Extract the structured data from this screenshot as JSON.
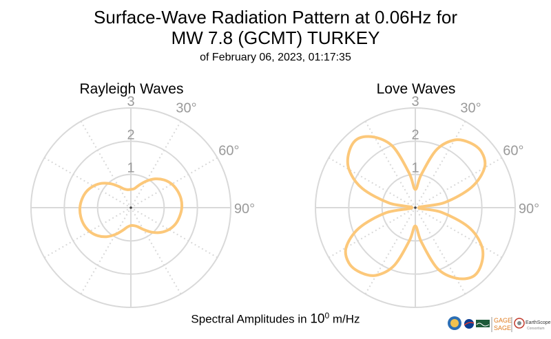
{
  "header": {
    "title_line1": "Surface-Wave Radiation Pattern at 0.06Hz for",
    "title_line2": "MW 7.8 (GCMT) TURKEY",
    "title_line3": "of February 06, 2023, 01:17:35"
  },
  "footer": {
    "label_pre": "Spectral Amplitudes in ",
    "label_base": "10",
    "label_exp": "0",
    "label_post": " m/Hz"
  },
  "logos": {
    "gage": "GAGE",
    "sage": "SAGE",
    "earthscope": "EarthScope",
    "consortium": "Consortium"
  },
  "colors": {
    "pattern": "#fcc87a",
    "grid": "#d9d9d9",
    "tick_text": "#9a9a9a"
  },
  "chart_data": [
    {
      "type": "polar",
      "title": "Rayleigh Waves",
      "radial_ticks": [
        "1",
        "2",
        "3"
      ],
      "radial_range": [
        0,
        3
      ],
      "angle_ticks": [
        "30°",
        "60°",
        "90°"
      ],
      "angular_grid_step_deg": 30,
      "azimuth_deg": [
        0,
        10,
        20,
        30,
        40,
        50,
        60,
        70,
        80,
        90,
        100,
        110,
        120,
        130,
        140,
        150,
        160,
        170,
        180,
        190,
        200,
        210,
        220,
        230,
        240,
        250,
        260,
        270,
        280,
        290,
        300,
        310,
        320,
        330,
        340,
        350
      ],
      "amplitude": [
        0.55,
        0.58,
        0.72,
        0.92,
        1.13,
        1.3,
        1.42,
        1.49,
        1.53,
        1.53,
        1.49,
        1.43,
        1.32,
        1.16,
        0.96,
        0.76,
        0.61,
        0.55,
        0.54,
        0.59,
        0.73,
        0.93,
        1.14,
        1.31,
        1.43,
        1.5,
        1.53,
        1.53,
        1.49,
        1.42,
        1.3,
        1.14,
        0.94,
        0.74,
        0.6,
        0.55
      ]
    },
    {
      "type": "polar",
      "title": "Love Waves",
      "radial_ticks": [
        "1",
        "2",
        "3"
      ],
      "radial_range": [
        0,
        3
      ],
      "angle_ticks": [
        "30°",
        "60°",
        "90°"
      ],
      "angular_grid_step_deg": 30,
      "azimuth_deg": [
        0,
        10,
        20,
        30,
        40,
        50,
        60,
        70,
        80,
        90,
        100,
        110,
        120,
        130,
        140,
        150,
        160,
        170,
        180,
        190,
        200,
        210,
        220,
        230,
        240,
        250,
        260,
        270,
        280,
        290,
        300,
        310,
        320,
        330,
        340,
        350
      ],
      "amplitude": [
        0.55,
        1.0,
        1.85,
        2.35,
        2.55,
        2.6,
        2.4,
        1.8,
        0.9,
        0.1,
        0.8,
        1.7,
        2.3,
        2.6,
        2.7,
        2.45,
        1.95,
        1.05,
        0.55,
        1.0,
        1.85,
        2.35,
        2.55,
        2.6,
        2.4,
        1.8,
        0.9,
        0.1,
        0.8,
        1.7,
        2.3,
        2.6,
        2.7,
        2.45,
        1.95,
        1.05
      ]
    }
  ]
}
